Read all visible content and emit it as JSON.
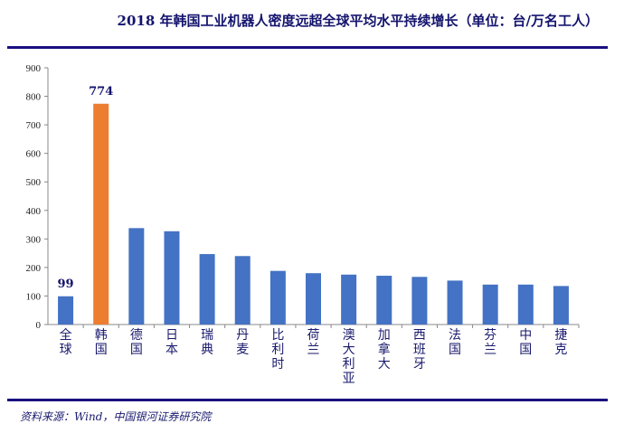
{
  "chart_data": {
    "type": "bar",
    "title": "2018 年韩国工业机器人密度远超全球平均水平持续增长（单位：台/万名工人）",
    "categories": [
      "全球",
      "韩国",
      "德国",
      "日本",
      "瑞典",
      "丹麦",
      "比利时",
      "荷兰",
      "澳大利亚",
      "加拿大",
      "西班牙",
      "法国",
      "芬兰",
      "中国",
      "捷克"
    ],
    "values": [
      99,
      774,
      338,
      327,
      247,
      240,
      188,
      180,
      175,
      171,
      167,
      154,
      140,
      140,
      135
    ],
    "colors": [
      "#4472c4",
      "#ed7d31",
      "#4472c4",
      "#4472c4",
      "#4472c4",
      "#4472c4",
      "#4472c4",
      "#4472c4",
      "#4472c4",
      "#4472c4",
      "#4472c4",
      "#4472c4",
      "#4472c4",
      "#4472c4",
      "#4472c4"
    ],
    "data_labels": {
      "0": "99",
      "1": "774"
    },
    "yticks": [
      "0",
      "100",
      "200",
      "300",
      "400",
      "500",
      "600",
      "700",
      "800",
      "900"
    ],
    "ylim": [
      0,
      900
    ],
    "xlabel": "",
    "ylabel": "",
    "grid": false
  },
  "source": "资料来源：Wind，中国银河证券研究院"
}
